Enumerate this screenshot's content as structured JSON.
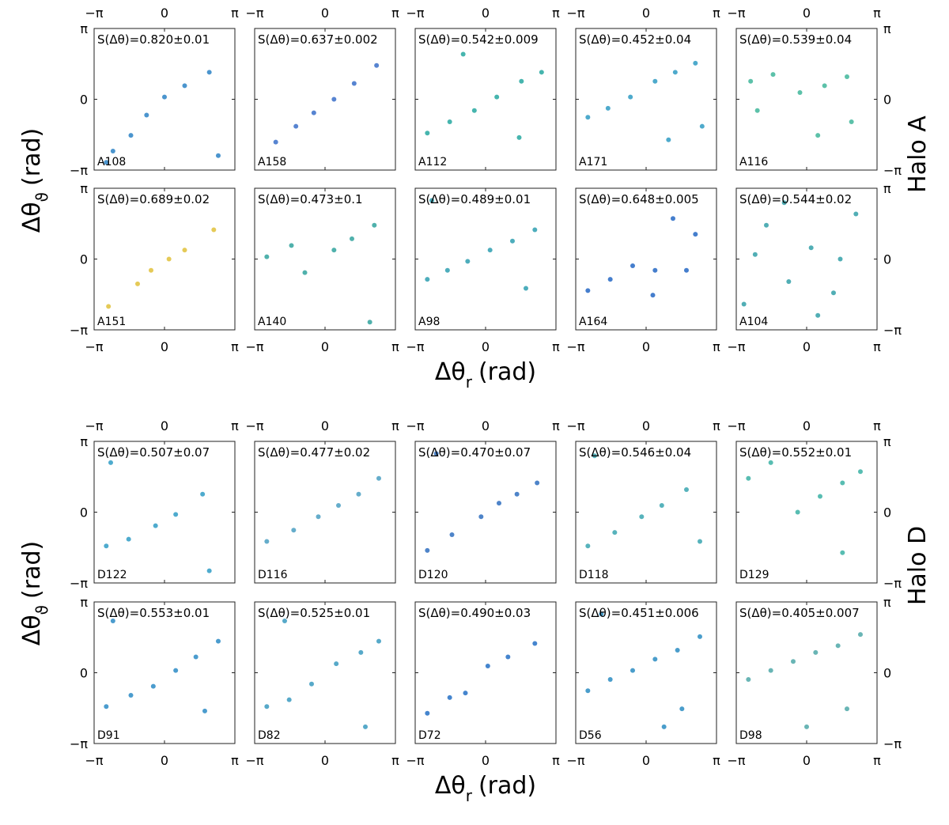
{
  "chart_data": [
    {
      "type": "scatter",
      "title": "S(Δθ)=0.820±0.01",
      "label": "A108",
      "color": "#2c83c6",
      "x": [
        -2.3,
        -1.5,
        -0.8,
        0,
        0.9,
        2.0,
        -2.6,
        2.4
      ],
      "y": [
        -2.3,
        -1.6,
        -0.7,
        0.1,
        0.6,
        1.2,
        -2.8,
        -2.5
      ]
    },
    {
      "type": "scatter",
      "title": "S(Δθ)=0.637±0.002",
      "label": "A158",
      "color": "#3a6fc9",
      "x": [
        -2.2,
        -1.3,
        -0.5,
        0.4,
        1.3,
        2.3
      ],
      "y": [
        -1.9,
        -1.2,
        -0.6,
        0,
        0.7,
        1.5
      ]
    },
    {
      "type": "scatter",
      "title": "S(Δθ)=0.542±0.009",
      "label": "A112",
      "color": "#26a8a0",
      "x": [
        -2.6,
        -1.6,
        -0.5,
        0.5,
        1.6,
        2.5,
        -1,
        1.5
      ],
      "y": [
        -1.5,
        -1,
        -0.5,
        0.1,
        0.8,
        1.2,
        2.0,
        -1.7
      ]
    },
    {
      "type": "scatter",
      "title": "S(Δθ)=0.452±0.04",
      "label": "A171",
      "color": "#2f9bc3",
      "x": [
        -2.6,
        -1.7,
        -0.7,
        0.4,
        1.3,
        2.2,
        1.0,
        2.5
      ],
      "y": [
        -0.8,
        -0.4,
        0.1,
        0.8,
        1.2,
        1.6,
        -1.8,
        -1.2
      ]
    },
    {
      "type": "scatter",
      "title": "S(Δθ)=0.539±0.04",
      "label": "A116",
      "color": "#3fb69a",
      "x": [
        -2.5,
        -1.5,
        -0.3,
        0.8,
        1.8,
        -2.2,
        0.5,
        2.0
      ],
      "y": [
        0.8,
        1.1,
        0.3,
        0.6,
        1.0,
        -0.5,
        -1.6,
        -1.0
      ]
    },
    {
      "type": "scatter",
      "title": "S(Δθ)=0.689±0.02",
      "label": "A151",
      "color": "#e1c13a",
      "x": [
        -2.5,
        -1.2,
        -0.6,
        0.2,
        0.9,
        2.2
      ],
      "y": [
        -2.1,
        -1.1,
        -0.5,
        0.0,
        0.4,
        1.3
      ]
    },
    {
      "type": "scatter",
      "title": "S(Δθ)=0.473±0.1",
      "label": "A140",
      "color": "#31a39d",
      "x": [
        -2.6,
        -1.5,
        -0.9,
        0.4,
        1.2,
        2.2,
        2.0
      ],
      "y": [
        0.1,
        0.6,
        -0.6,
        0.4,
        0.9,
        1.5,
        -2.8
      ]
    },
    {
      "type": "scatter",
      "title": "S(Δθ)=0.489±0.01",
      "label": "A98",
      "color": "#2e9fb0",
      "x": [
        -2.6,
        -1.7,
        -0.8,
        0.2,
        1.2,
        2.2,
        -2.4,
        1.8
      ],
      "y": [
        -0.9,
        -0.5,
        -0.1,
        0.4,
        0.8,
        1.3,
        2.6,
        -1.3
      ]
    },
    {
      "type": "scatter",
      "title": "S(Δθ)=0.648±0.005",
      "label": "A164",
      "color": "#2467c4",
      "x": [
        -2.6,
        -1.6,
        -0.6,
        0.4,
        1.2,
        2.2,
        0.3,
        1.8
      ],
      "y": [
        -1.4,
        -0.9,
        -0.3,
        -0.5,
        1.8,
        1.1,
        -1.6,
        -0.5
      ]
    },
    {
      "type": "scatter",
      "title": "S(Δθ)=0.544±0.02",
      "label": "A104",
      "color": "#33a0a8",
      "x": [
        -2.8,
        -1.8,
        -0.8,
        0.2,
        1.2,
        2.2,
        -1,
        1.5,
        0.5,
        -2.3
      ],
      "y": [
        -2.0,
        1.5,
        -1.0,
        0.5,
        -1.5,
        2.0,
        2.5,
        0.0,
        -2.5,
        0.2
      ]
    },
    {
      "type": "scatter",
      "title": "S(Δθ)=0.507±0.07",
      "label": "D122",
      "color": "#2f9cc6",
      "x": [
        -2.6,
        -1.6,
        -0.4,
        0.5,
        1.7,
        -2.4,
        2.0
      ],
      "y": [
        -1.5,
        -1.2,
        -0.6,
        -0.1,
        0.8,
        2.2,
        -2.6
      ]
    },
    {
      "type": "scatter",
      "title": "S(Δθ)=0.477±0.02",
      "label": "D116",
      "color": "#4a9fc2",
      "x": [
        -2.6,
        -1.4,
        -0.3,
        0.6,
        1.5,
        2.4
      ],
      "y": [
        -1.3,
        -0.8,
        -0.2,
        0.3,
        0.8,
        1.5
      ]
    },
    {
      "type": "scatter",
      "title": "S(Δθ)=0.470±0.07",
      "label": "D120",
      "color": "#2f6fc0",
      "x": [
        -2.6,
        -1.5,
        -0.2,
        0.6,
        1.4,
        2.3,
        -2.2
      ],
      "y": [
        -1.7,
        -1.0,
        -0.2,
        0.4,
        0.8,
        1.3,
        2.6
      ]
    },
    {
      "type": "scatter",
      "title": "S(Δθ)=0.546±0.04",
      "label": "D118",
      "color": "#3aa6b0",
      "x": [
        -2.6,
        -1.4,
        -0.2,
        0.7,
        1.8,
        -2.3,
        2.4
      ],
      "y": [
        -1.5,
        -0.9,
        -0.2,
        0.3,
        1.0,
        2.5,
        -1.3
      ]
    },
    {
      "type": "scatter",
      "title": "S(Δθ)=0.552±0.01",
      "label": "D129",
      "color": "#3bb2a4",
      "x": [
        -2.6,
        -1.6,
        -0.4,
        0.6,
        1.6,
        2.4,
        1.6
      ],
      "y": [
        1.5,
        2.2,
        0.0,
        0.7,
        1.3,
        1.8,
        -1.8
      ]
    },
    {
      "type": "scatter",
      "title": "S(Δθ)=0.553±0.01",
      "label": "D91",
      "color": "#2b8bc6",
      "x": [
        -2.6,
        -1.5,
        -0.5,
        0.5,
        1.4,
        2.4,
        -2.3,
        1.8
      ],
      "y": [
        -1.5,
        -1.0,
        -0.6,
        0.1,
        0.7,
        1.4,
        2.3,
        -1.7
      ]
    },
    {
      "type": "scatter",
      "title": "S(Δθ)=0.525±0.01",
      "label": "D82",
      "color": "#3a9ac0",
      "x": [
        -2.6,
        -1.6,
        -0.6,
        0.5,
        1.6,
        2.4,
        -1.8,
        1.8
      ],
      "y": [
        -1.5,
        -1.2,
        -0.5,
        0.4,
        0.9,
        1.4,
        2.3,
        -2.4
      ]
    },
    {
      "type": "scatter",
      "title": "S(Δθ)=0.490±0.03",
      "label": "D72",
      "color": "#2470c6",
      "x": [
        -2.6,
        -1.6,
        -0.9,
        0.1,
        1.0,
        2.2
      ],
      "y": [
        -1.8,
        -1.1,
        -0.9,
        0.3,
        0.7,
        1.3
      ]
    },
    {
      "type": "scatter",
      "title": "S(Δθ)=0.451±0.006",
      "label": "D56",
      "color": "#2a8cc2",
      "x": [
        -2.6,
        -1.6,
        -0.6,
        0.4,
        1.4,
        2.4,
        -2.0,
        1.6,
        0.8
      ],
      "y": [
        -0.8,
        -0.3,
        0.1,
        0.6,
        1.0,
        1.6,
        2.6,
        -1.6,
        -2.4
      ]
    },
    {
      "type": "scatter",
      "title": "S(Δθ)=0.405±0.007",
      "label": "D98",
      "color": "#4fa8a8",
      "x": [
        -2.6,
        -1.6,
        -0.6,
        0.4,
        1.4,
        2.4,
        0.0,
        1.8
      ],
      "y": [
        -0.3,
        0.1,
        0.5,
        0.9,
        1.2,
        1.7,
        -2.4,
        -1.6
      ]
    }
  ],
  "axes": {
    "xlim": [
      -3.14159,
      3.14159
    ],
    "ylim": [
      -3.14159,
      3.14159
    ],
    "xticks": [
      {
        "value": -3.14159,
        "label": "−π"
      },
      0,
      {
        "value": 3.14159,
        "label": "π"
      }
    ],
    "yticks": [
      {
        "value": -3.14159,
        "label": "−π"
      },
      0,
      {
        "value": 3.14159,
        "label": "π"
      }
    ]
  },
  "labels": {
    "x_title": {
      "symbol": "Δθ",
      "sub": "r",
      "unit": "(rad)"
    },
    "y_title": {
      "symbol": "Δθ",
      "sub": "ϑ",
      "unit": "(rad)"
    },
    "groups": [
      "Halo A",
      "Halo D"
    ]
  }
}
